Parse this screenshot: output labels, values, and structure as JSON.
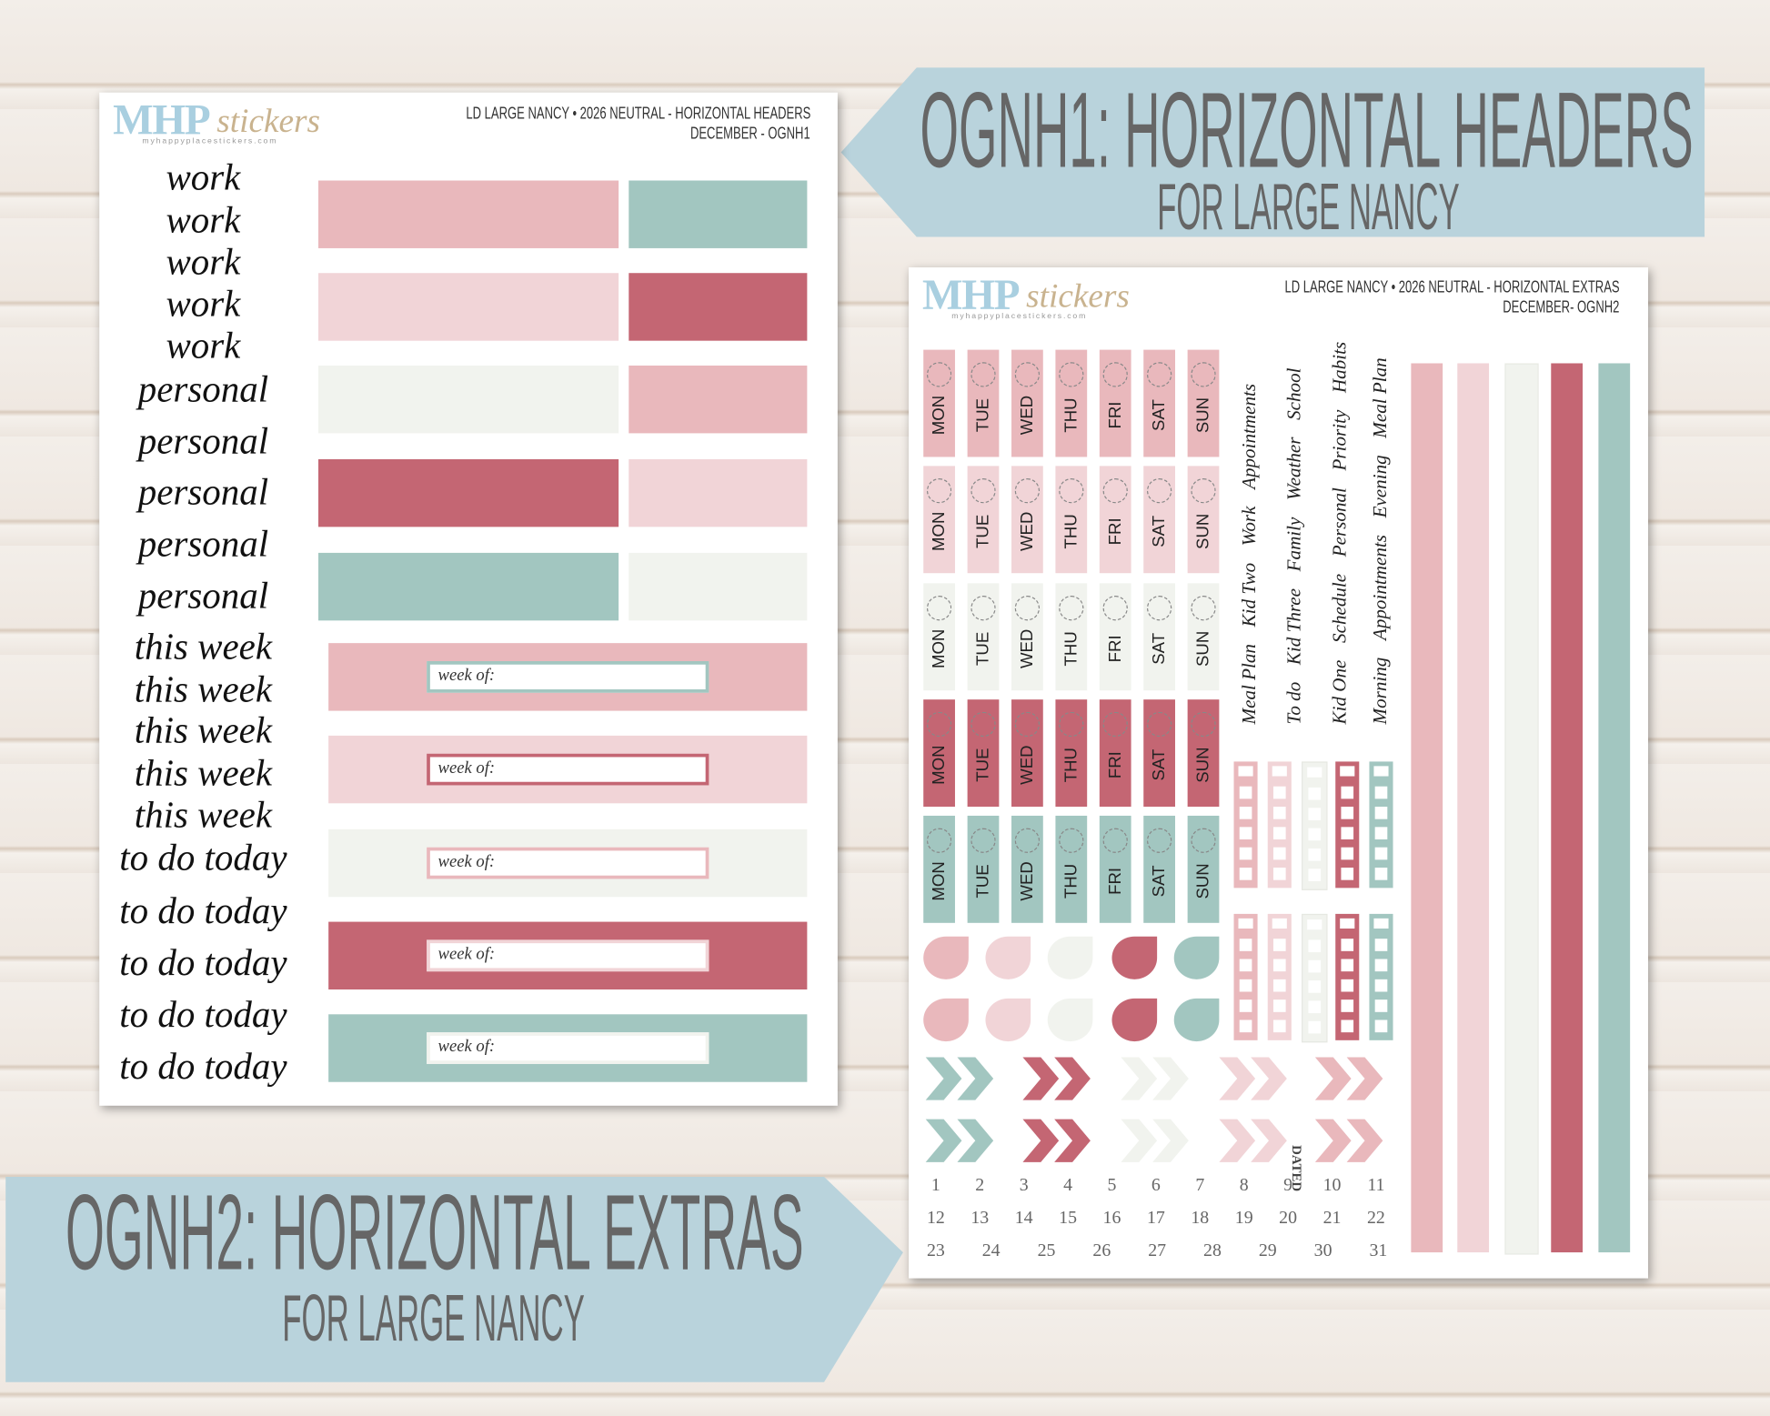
{
  "banners": [
    {
      "title": "OGNH1: HORIZONTAL HEADERS",
      "subtitle": "FOR LARGE NANCY"
    },
    {
      "title": "OGNH2: HORIZONTAL EXTRAS",
      "subtitle": "FOR LARGE NANCY"
    }
  ],
  "sheets": [
    {
      "logo": {
        "brand": "MHP",
        "script": "stickers",
        "url": "myhappyplacestickers.com"
      },
      "header": [
        "LD LARGE NANCY • 2026 NEUTRAL - HORIZONTAL HEADERS",
        "DECEMBER - OGNH1"
      ],
      "words": [
        "work",
        "work",
        "work",
        "work",
        "work",
        "personal",
        "personal",
        "personal",
        "personal",
        "personal",
        "this week",
        "this week",
        "this week",
        "this week",
        "this week",
        "to do today",
        "to do today",
        "to do today",
        "to do today",
        "to do today"
      ],
      "box_label": "week of:"
    },
    {
      "logo": {
        "brand": "MHP",
        "script": "stickers",
        "url": "myhappyplacestickers.com"
      },
      "header": [
        "LD LARGE NANCY • 2026 NEUTRAL - HORIZONTAL EXTRAS",
        "DECEMBER- OGNH2"
      ],
      "days": [
        "MON",
        "TUE",
        "WED",
        "THU",
        "FRI",
        "SAT",
        "SUN"
      ],
      "labels": [
        [
          "Meal Plan",
          "Kid Two",
          "Work",
          "Appointments"
        ],
        [
          "To do",
          "Kid Three",
          "Family",
          "Weather",
          "School"
        ],
        [
          "Kid One",
          "Schedule",
          "Personal",
          "Priority",
          "Habits"
        ],
        [
          "Morning",
          "Appointments",
          "Evening",
          "Meal Plan"
        ]
      ],
      "dated": "DATED",
      "dates": [
        1,
        2,
        3,
        4,
        5,
        6,
        7,
        8,
        9,
        10,
        11,
        12,
        13,
        14,
        15,
        16,
        17,
        18,
        19,
        20,
        21,
        22,
        23,
        24,
        25,
        26,
        27,
        28,
        29,
        30,
        31
      ]
    }
  ]
}
